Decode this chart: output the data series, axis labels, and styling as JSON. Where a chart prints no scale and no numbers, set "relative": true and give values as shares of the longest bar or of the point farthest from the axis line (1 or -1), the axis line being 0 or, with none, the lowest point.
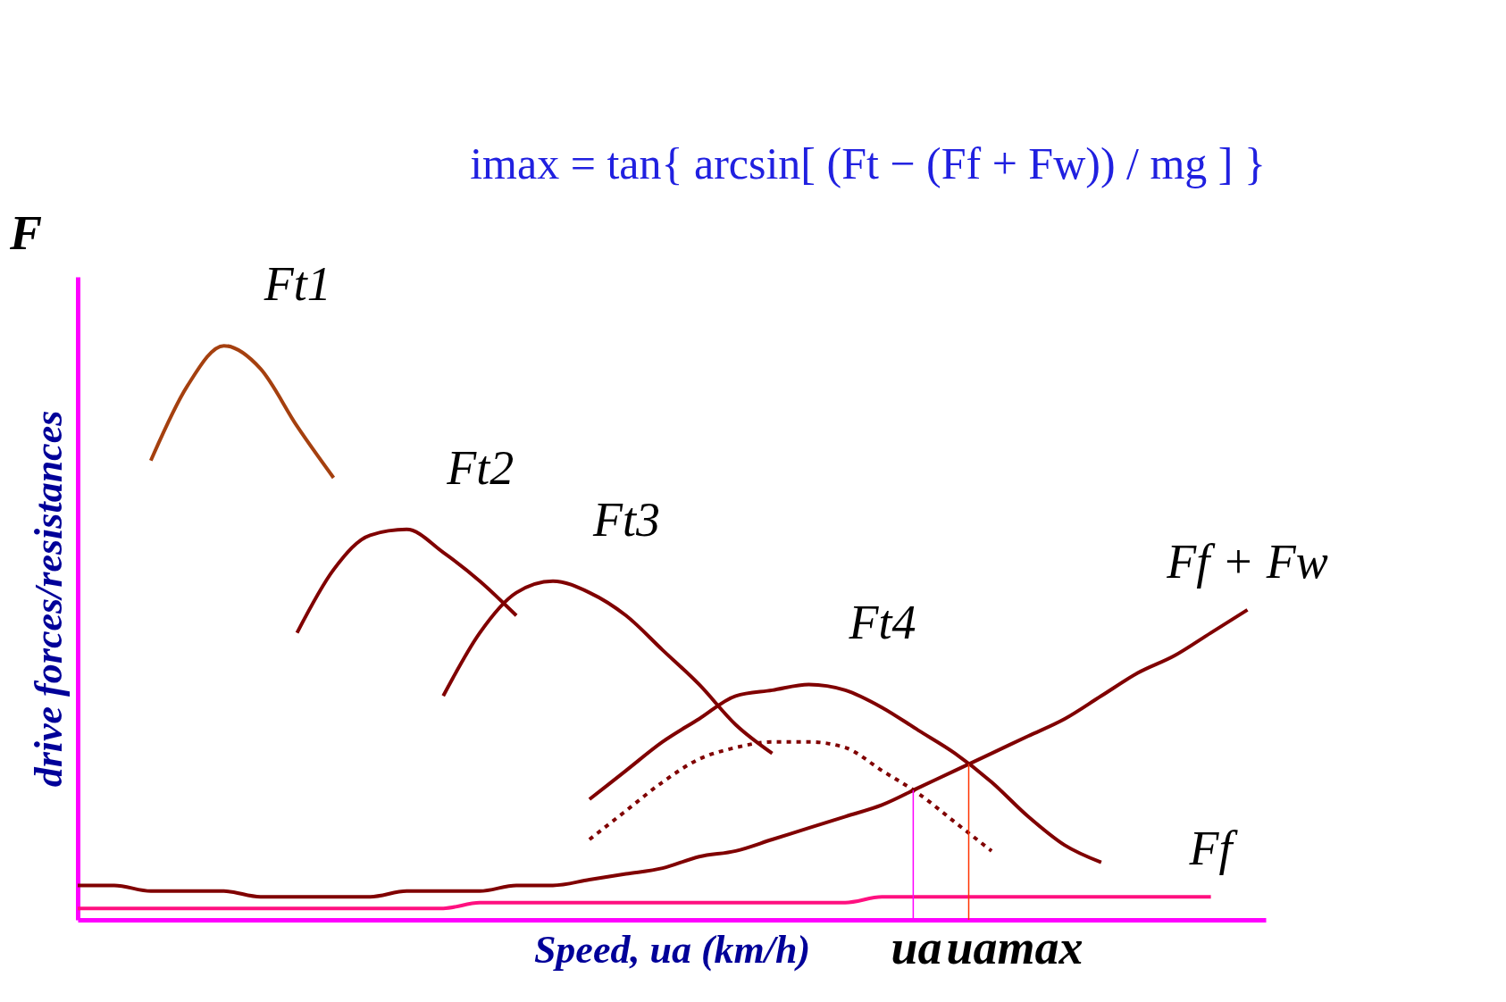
{
  "chart_data": {
    "type": "line",
    "relative": true,
    "grid": false,
    "xlabel": "Speed, ua  (km/h)",
    "ylabel": "drive forces/resistances",
    "annotations": [
      "F",
      "imax = tan{ arcsin[ (Ft − (Ff + Fw)) / mg ] }",
      "ua",
      "uamax"
    ],
    "categories": [
      null,
      null,
      null,
      null,
      null,
      null,
      null,
      null,
      null,
      null,
      null,
      null,
      null,
      null,
      null,
      null,
      null,
      null,
      null,
      null,
      null,
      null,
      null,
      null,
      null,
      null,
      null,
      null,
      null,
      null,
      null,
      null,
      null
    ],
    "series": [
      {
        "name": "Ft1",
        "color": "#a5400f",
        "values": [
          null,
          null,
          0.8,
          0.93,
          1.0,
          0.96,
          0.86,
          0.77,
          null,
          null,
          null,
          null,
          null,
          null,
          null,
          null,
          null,
          null,
          null,
          null,
          null,
          null,
          null,
          null,
          null,
          null,
          null,
          null,
          null,
          null,
          null,
          null,
          null
        ]
      },
      {
        "name": "Ft2",
        "color": "#800000",
        "values": [
          null,
          null,
          null,
          null,
          null,
          null,
          0.5,
          0.61,
          0.67,
          0.68,
          0.64,
          0.59,
          0.53,
          null,
          null,
          null,
          null,
          null,
          null,
          null,
          null,
          null,
          null,
          null,
          null,
          null,
          null,
          null,
          null,
          null,
          null,
          null,
          null
        ]
      },
      {
        "name": "Ft3",
        "color": "#800000",
        "values": [
          null,
          null,
          null,
          null,
          null,
          null,
          null,
          null,
          null,
          null,
          0.39,
          0.5,
          0.57,
          0.59,
          0.57,
          0.53,
          0.47,
          0.41,
          0.34,
          0.29,
          null,
          null,
          null,
          null,
          null,
          null,
          null,
          null,
          null,
          null,
          null,
          null,
          null
        ]
      },
      {
        "name": "Ft4",
        "color": "#800000",
        "values": [
          null,
          null,
          null,
          null,
          null,
          null,
          null,
          null,
          null,
          null,
          null,
          null,
          null,
          null,
          0.21,
          0.26,
          0.31,
          0.35,
          0.39,
          0.4,
          0.41,
          0.4,
          0.37,
          0.33,
          0.29,
          0.24,
          0.18,
          0.13,
          0.1,
          null,
          null,
          null,
          null
        ]
      },
      {
        "color": "#800000",
        "line_style": "dotted",
        "values": [
          null,
          null,
          null,
          null,
          null,
          null,
          null,
          null,
          null,
          null,
          null,
          null,
          null,
          null,
          0.14,
          0.19,
          0.24,
          0.28,
          0.3,
          0.31,
          0.31,
          0.3,
          0.26,
          0.22,
          0.17,
          0.12,
          null,
          null,
          null,
          null,
          null,
          null,
          null
        ]
      },
      {
        "name": "Ff + Fw",
        "color": "#800000",
        "values": [
          0.06,
          0.06,
          0.05,
          0.05,
          0.05,
          0.04,
          0.04,
          0.04,
          0.04,
          0.05,
          0.05,
          0.05,
          0.06,
          0.06,
          0.07,
          0.08,
          0.09,
          0.11,
          0.12,
          0.14,
          0.16,
          0.18,
          0.2,
          0.23,
          0.26,
          0.29,
          0.32,
          0.35,
          0.39,
          0.43,
          0.46,
          0.5,
          0.54
        ]
      },
      {
        "name": "Ff",
        "color": "#ff1080",
        "values": [
          0.02,
          0.02,
          0.02,
          0.02,
          0.02,
          0.02,
          0.02,
          0.02,
          0.02,
          0.02,
          0.02,
          0.03,
          0.03,
          0.03,
          0.03,
          0.03,
          0.03,
          0.03,
          0.03,
          0.03,
          0.03,
          0.03,
          0.04,
          0.04,
          0.04,
          0.04,
          0.04,
          0.04,
          0.04,
          0.04,
          0.04,
          0.04,
          null
        ]
      }
    ]
  }
}
